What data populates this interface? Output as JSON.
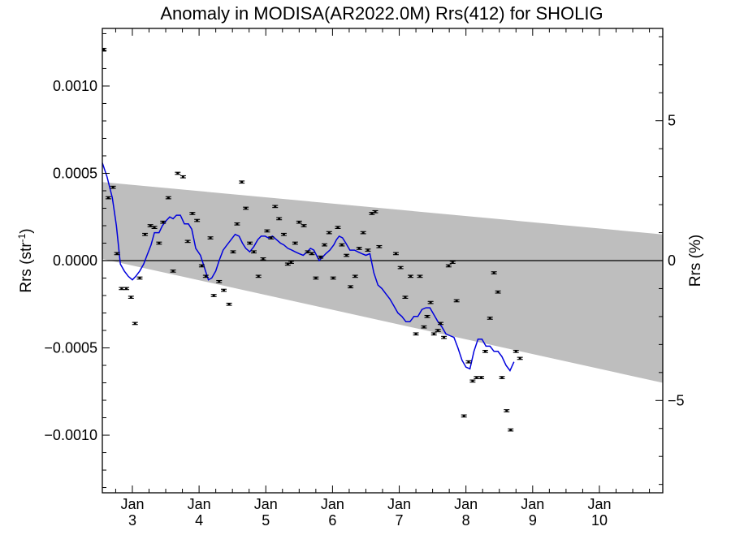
{
  "chart_data": {
    "type": "scatter",
    "title": "Anomaly in MODISA(AR2022.0M) Rrs(412) for SHOLIG",
    "ylabel_left": {
      "base": "Rrs (str",
      "sup": "-1",
      "end": ")"
    },
    "ylabel_right": "Rrs (%)",
    "xlabel": "",
    "x_unit": "days (January, year not shown)",
    "xlim": [
      2.55,
      10.95
    ],
    "ylim": [
      -0.00133,
      0.00133
    ],
    "ylim_right_pct": [
      -8.3,
      8.3
    ],
    "left_ticks": [
      {
        "value": 0.001,
        "label": "0.0010"
      },
      {
        "value": 0.0005,
        "label": "0.0005"
      },
      {
        "value": 0.0,
        "label": "0.0000"
      },
      {
        "value": -0.0005,
        "label": "−0.0005"
      },
      {
        "value": -0.001,
        "label": "−0.0010"
      }
    ],
    "right_ticks": [
      {
        "value": 5,
        "label": "5"
      },
      {
        "value": 0,
        "label": "0"
      },
      {
        "value": -5,
        "label": "−5"
      }
    ],
    "x_ticks": [
      {
        "value": 3,
        "month": "Jan",
        "day": "3"
      },
      {
        "value": 4,
        "month": "Jan",
        "day": "4"
      },
      {
        "value": 5,
        "month": "Jan",
        "day": "5"
      },
      {
        "value": 6,
        "month": "Jan",
        "day": "6"
      },
      {
        "value": 7,
        "month": "Jan",
        "day": "7"
      },
      {
        "value": 8,
        "month": "Jan",
        "day": "8"
      },
      {
        "value": 9,
        "month": "Jan",
        "day": "9"
      },
      {
        "value": 10,
        "month": "Jan",
        "day": "10"
      }
    ],
    "band": {
      "color": "#bebebe",
      "x": [
        2.55,
        10.95
      ],
      "upper": [
        0.00045,
        0.00015
      ],
      "lower": [
        1e-05,
        -0.0007
      ]
    },
    "zero_line": 0,
    "points_color": "#000000",
    "line_color": "#0000dd",
    "points": [
      [
        2.57,
        0.00121
      ],
      [
        2.64,
        0.00036
      ],
      [
        2.71,
        0.00042
      ],
      [
        2.77,
        4e-05
      ],
      [
        2.84,
        -0.00016
      ],
      [
        2.91,
        -0.00016
      ],
      [
        2.98,
        -0.00021
      ],
      [
        3.04,
        -0.00036
      ],
      [
        3.11,
        -0.0001
      ],
      [
        3.19,
        0.00015
      ],
      [
        3.27,
        0.0002
      ],
      [
        3.33,
        0.00019
      ],
      [
        3.4,
        0.0001
      ],
      [
        3.46,
        0.00022
      ],
      [
        3.54,
        0.00036
      ],
      [
        3.61,
        -6e-05
      ],
      [
        3.68,
        0.0005
      ],
      [
        3.76,
        0.00048
      ],
      [
        3.83,
        0.00011
      ],
      [
        3.9,
        0.00027
      ],
      [
        3.97,
        0.00023
      ],
      [
        4.04,
        -3e-05
      ],
      [
        4.1,
        -9e-05
      ],
      [
        4.17,
        0.00013
      ],
      [
        4.22,
        -0.0002
      ],
      [
        4.3,
        -0.00012
      ],
      [
        4.37,
        -0.00017
      ],
      [
        4.45,
        -0.00025
      ],
      [
        4.51,
        5e-05
      ],
      [
        4.57,
        0.00021
      ],
      [
        4.64,
        0.00045
      ],
      [
        4.7,
        0.0003
      ],
      [
        4.76,
        0.0001
      ],
      [
        4.82,
        5e-05
      ],
      [
        4.89,
        -9e-05
      ],
      [
        4.96,
        1e-05
      ],
      [
        5.02,
        0.00017
      ],
      [
        5.08,
        0.00013
      ],
      [
        5.14,
        0.00031
      ],
      [
        5.2,
        0.00024
      ],
      [
        5.27,
        0.00015
      ],
      [
        5.33,
        -2e-05
      ],
      [
        5.38,
        -1e-05
      ],
      [
        5.44,
        0.0001
      ],
      [
        5.5,
        0.00022
      ],
      [
        5.57,
        0.0002
      ],
      [
        5.63,
        5e-05
      ],
      [
        5.69,
        4e-05
      ],
      [
        5.75,
        -0.0001
      ],
      [
        5.82,
        2e-05
      ],
      [
        5.88,
        9e-05
      ],
      [
        5.95,
        0.00016
      ],
      [
        6.01,
        -0.0001
      ],
      [
        6.08,
        0.00019
      ],
      [
        6.14,
        9e-05
      ],
      [
        6.21,
        3e-05
      ],
      [
        6.27,
        -0.00015
      ],
      [
        6.34,
        -9e-05
      ],
      [
        6.4,
        7e-05
      ],
      [
        6.46,
        0.00016
      ],
      [
        6.53,
        6e-05
      ],
      [
        6.59,
        0.00027
      ],
      [
        6.64,
        0.00028
      ],
      [
        6.7,
        8e-05
      ],
      [
        6.95,
        4e-05
      ],
      [
        7.02,
        -4e-05
      ],
      [
        7.09,
        -0.00021
      ],
      [
        7.17,
        -9e-05
      ],
      [
        7.25,
        -0.00042
      ],
      [
        7.31,
        -9e-05
      ],
      [
        7.37,
        -0.00038
      ],
      [
        7.42,
        -0.00032
      ],
      [
        7.47,
        -0.00024
      ],
      [
        7.52,
        -0.00042
      ],
      [
        7.58,
        -0.0004
      ],
      [
        7.62,
        -0.00036
      ],
      [
        7.67,
        -0.00044
      ],
      [
        7.74,
        -3e-05
      ],
      [
        7.8,
        -1e-05
      ],
      [
        7.86,
        -0.00023
      ],
      [
        7.97,
        -0.00089
      ],
      [
        8.04,
        -0.00058
      ],
      [
        8.1,
        -0.00069
      ],
      [
        8.16,
        -0.00067
      ],
      [
        8.23,
        -0.00067
      ],
      [
        8.29,
        -0.00052
      ],
      [
        8.36,
        -0.00033
      ],
      [
        8.42,
        -7e-05
      ],
      [
        8.48,
        -0.00018
      ],
      [
        8.54,
        -0.00067
      ],
      [
        8.61,
        -0.00086
      ],
      [
        8.67,
        -0.00097
      ],
      [
        8.75,
        -0.00052
      ],
      [
        8.81,
        -0.00056
      ]
    ],
    "smooth_line": [
      [
        2.55,
        0.00056
      ],
      [
        2.62,
        0.00048
      ],
      [
        2.7,
        0.00036
      ],
      [
        2.76,
        0.0002
      ],
      [
        2.82,
        -2e-05
      ],
      [
        2.88,
        -6e-05
      ],
      [
        2.94,
        -9e-05
      ],
      [
        3.0,
        -0.00011
      ],
      [
        3.05,
        -9e-05
      ],
      [
        3.11,
        -6e-05
      ],
      [
        3.17,
        -2e-05
      ],
      [
        3.22,
        3e-05
      ],
      [
        3.28,
        9e-05
      ],
      [
        3.33,
        0.00016
      ],
      [
        3.4,
        0.00016
      ],
      [
        3.45,
        0.0002
      ],
      [
        3.51,
        0.00023
      ],
      [
        3.56,
        0.00025
      ],
      [
        3.61,
        0.00024
      ],
      [
        3.66,
        0.00026
      ],
      [
        3.72,
        0.00026
      ],
      [
        3.78,
        0.00021
      ],
      [
        3.84,
        0.00021
      ],
      [
        3.89,
        0.00018
      ],
      [
        3.95,
        7e-05
      ],
      [
        4.02,
        3e-05
      ],
      [
        4.08,
        -4e-05
      ],
      [
        4.14,
        -0.00011
      ],
      [
        4.19,
        -0.0001
      ],
      [
        4.25,
        -6e-05
      ],
      [
        4.3,
        0.0
      ],
      [
        4.36,
        6e-05
      ],
      [
        4.42,
        9e-05
      ],
      [
        4.48,
        0.00012
      ],
      [
        4.54,
        0.00015
      ],
      [
        4.6,
        0.00014
      ],
      [
        4.65,
        0.0001
      ],
      [
        4.7,
        7e-05
      ],
      [
        4.76,
        5e-05
      ],
      [
        4.82,
        8e-05
      ],
      [
        4.88,
        0.00012
      ],
      [
        4.93,
        0.00014
      ],
      [
        4.99,
        0.00014
      ],
      [
        5.04,
        0.00013
      ],
      [
        5.1,
        0.00014
      ],
      [
        5.16,
        0.00012
      ],
      [
        5.22,
        0.0001
      ],
      [
        5.27,
        9e-05
      ],
      [
        5.33,
        7e-05
      ],
      [
        5.39,
        6e-05
      ],
      [
        5.44,
        5e-05
      ],
      [
        5.5,
        4e-05
      ],
      [
        5.56,
        3e-05
      ],
      [
        5.62,
        5e-05
      ],
      [
        5.67,
        7e-05
      ],
      [
        5.72,
        6e-05
      ],
      [
        5.76,
        3e-05
      ],
      [
        5.8,
        0.0
      ],
      [
        5.85,
        2e-05
      ],
      [
        5.9,
        4e-05
      ],
      [
        5.96,
        6e-05
      ],
      [
        6.02,
        9e-05
      ],
      [
        6.06,
        0.00012
      ],
      [
        6.1,
        0.00014
      ],
      [
        6.15,
        0.00013
      ],
      [
        6.2,
        0.0001
      ],
      [
        6.26,
        6e-05
      ],
      [
        6.33,
        6e-05
      ],
      [
        6.38,
        5e-05
      ],
      [
        6.44,
        4e-05
      ],
      [
        6.5,
        3e-05
      ],
      [
        6.56,
        4e-05
      ],
      [
        6.62,
        -7e-05
      ],
      [
        6.68,
        -0.00014
      ],
      [
        6.74,
        -0.00016
      ],
      [
        6.8,
        -0.00019
      ],
      [
        6.86,
        -0.00022
      ],
      [
        6.92,
        -0.00026
      ],
      [
        6.98,
        -0.0003
      ],
      [
        7.04,
        -0.00032
      ],
      [
        7.1,
        -0.00035
      ],
      [
        7.16,
        -0.00035
      ],
      [
        7.22,
        -0.00032
      ],
      [
        7.28,
        -0.00032
      ],
      [
        7.34,
        -0.00028
      ],
      [
        7.4,
        -0.00027
      ],
      [
        7.46,
        -0.00027
      ],
      [
        7.52,
        -0.00031
      ],
      [
        7.58,
        -0.00035
      ],
      [
        7.64,
        -0.00038
      ],
      [
        7.7,
        -0.00042
      ],
      [
        7.76,
        -0.00043
      ],
      [
        7.82,
        -0.00044
      ],
      [
        7.88,
        -0.0005
      ],
      [
        7.94,
        -0.00057
      ],
      [
        8.0,
        -0.00061
      ],
      [
        8.06,
        -0.00062
      ],
      [
        8.12,
        -0.00052
      ],
      [
        8.18,
        -0.00045
      ],
      [
        8.24,
        -0.00045
      ],
      [
        8.3,
        -0.00049
      ],
      [
        8.36,
        -0.00049
      ],
      [
        8.42,
        -0.00052
      ],
      [
        8.48,
        -0.00052
      ],
      [
        8.54,
        -0.00055
      ],
      [
        8.6,
        -0.0006
      ],
      [
        8.66,
        -0.00063
      ],
      [
        8.72,
        -0.00058
      ]
    ]
  }
}
